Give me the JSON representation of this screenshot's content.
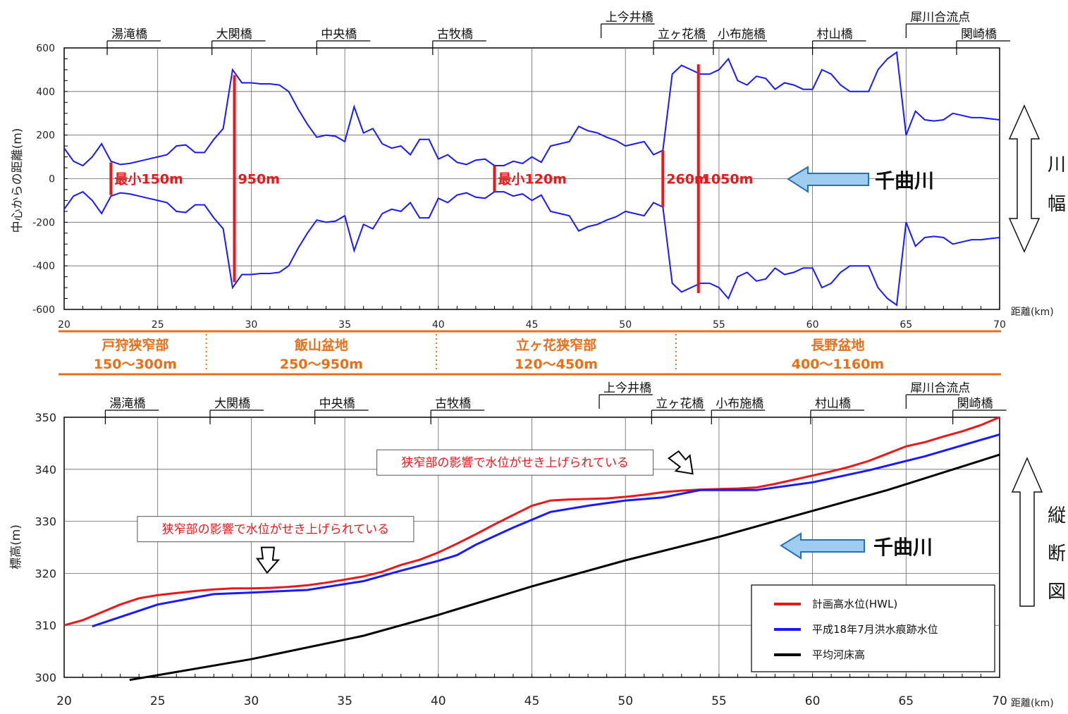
{
  "chart_data": [
    {
      "type": "line",
      "ylabel": "中心からの距離(m)",
      "xlabel": "距離(km)",
      "xlim": [
        20,
        70
      ],
      "ylim": [
        -600,
        600
      ],
      "xticks": [
        20,
        25,
        30,
        35,
        40,
        45,
        50,
        55,
        60,
        65,
        70
      ],
      "xtick_labels": [
        "20",
        "25",
        "30",
        "35",
        "40",
        "45",
        "50",
        "55",
        "60",
        "65",
        "70"
      ],
      "yticks": [
        600,
        400,
        200,
        0,
        -200,
        -400,
        -600
      ],
      "ytick_labels": [
        "600",
        "400",
        "200",
        "0",
        "-200",
        "-400",
        "-600"
      ],
      "grid": true,
      "series_color": "#1a1aff",
      "x": [
        20,
        20.5,
        21,
        21.5,
        22,
        22.5,
        23,
        23.5,
        24,
        24.5,
        25,
        25.5,
        26,
        26.5,
        27,
        27.5,
        28,
        28.5,
        29,
        29.5,
        30,
        30.5,
        31,
        31.5,
        32,
        32.5,
        33,
        33.5,
        34,
        34.5,
        35,
        35.5,
        36,
        36.5,
        37,
        37.5,
        38,
        38.5,
        39,
        39.5,
        40,
        40.5,
        41,
        41.5,
        42,
        42.5,
        43,
        43.5,
        44,
        44.5,
        45,
        45.5,
        46,
        46.5,
        47,
        47.5,
        48,
        48.5,
        49,
        49.5,
        50,
        50.5,
        51,
        51.5,
        52,
        52.5,
        53,
        53.5,
        54,
        54.5,
        55,
        55.5,
        56,
        56.5,
        57,
        57.5,
        58,
        58.5,
        59,
        59.5,
        60,
        60.5,
        61,
        61.5,
        62,
        62.5,
        63,
        63.5,
        64,
        64.5,
        65,
        65.5,
        66,
        66.5,
        67,
        67.5,
        68,
        68.5,
        69,
        69.5,
        70
      ],
      "upper": [
        140,
        80,
        60,
        100,
        160,
        80,
        65,
        70,
        80,
        90,
        100,
        110,
        150,
        155,
        120,
        120,
        180,
        230,
        500,
        440,
        440,
        435,
        435,
        430,
        400,
        320,
        250,
        190,
        200,
        195,
        170,
        330,
        210,
        230,
        160,
        140,
        150,
        110,
        180,
        180,
        90,
        110,
        75,
        65,
        85,
        90,
        60,
        60,
        80,
        70,
        100,
        75,
        150,
        160,
        170,
        240,
        220,
        210,
        190,
        175,
        150,
        160,
        170,
        110,
        130,
        480,
        520,
        500,
        480,
        480,
        500,
        550,
        450,
        430,
        470,
        460,
        410,
        440,
        430,
        410,
        410,
        500,
        480,
        430,
        400,
        400,
        400,
        500,
        550,
        580,
        200,
        310,
        270,
        265,
        270,
        300,
        290,
        280,
        280,
        275,
        270
      ],
      "lower": [
        -140,
        -80,
        -60,
        -100,
        -160,
        -80,
        -65,
        -70,
        -80,
        -90,
        -100,
        -110,
        -150,
        -155,
        -120,
        -120,
        -180,
        -230,
        -500,
        -440,
        -440,
        -435,
        -435,
        -430,
        -400,
        -320,
        -250,
        -190,
        -200,
        -195,
        -170,
        -330,
        -210,
        -230,
        -160,
        -140,
        -150,
        -110,
        -180,
        -180,
        -90,
        -110,
        -75,
        -65,
        -85,
        -90,
        -60,
        -60,
        -80,
        -70,
        -100,
        -75,
        -150,
        -160,
        -170,
        -240,
        -220,
        -210,
        -190,
        -175,
        -150,
        -160,
        -170,
        -110,
        -130,
        -480,
        -520,
        -500,
        -480,
        -480,
        -500,
        -550,
        -450,
        -430,
        -470,
        -460,
        -410,
        -440,
        -430,
        -410,
        -410,
        -500,
        -480,
        -430,
        -400,
        -400,
        -400,
        -500,
        -550,
        -580,
        -200,
        -310,
        -270,
        -265,
        -270,
        -300,
        -290,
        -280,
        -280,
        -275,
        -270
      ],
      "width_markers": [
        {
          "x": 22.5,
          "half_width": 75,
          "label": "最小150m"
        },
        {
          "x": 29.1,
          "half_width": 475,
          "label": "950m"
        },
        {
          "x": 43.0,
          "half_width": 60,
          "label": "最小120m"
        },
        {
          "x": 52.0,
          "half_width": 130,
          "label": "260m"
        },
        {
          "x": 53.9,
          "half_width": 525,
          "label": "1050m"
        }
      ],
      "bridges": [
        {
          "x": 22.3,
          "label": "湯滝橋"
        },
        {
          "x": 27.9,
          "label": "大関橋"
        },
        {
          "x": 33.5,
          "label": "中央橋"
        },
        {
          "x": 39.7,
          "label": "古牧橋"
        },
        {
          "x": 48.7,
          "label": "上今井橋"
        },
        {
          "x": 51.5,
          "label": "立ヶ花橋"
        },
        {
          "x": 54.7,
          "label": "小布施橋"
        },
        {
          "x": 60.0,
          "label": "村山橋"
        },
        {
          "x": 65.0,
          "label": "犀川合流点"
        },
        {
          "x": 67.7,
          "label": "関崎橋"
        }
      ],
      "river_label": "千曲川",
      "side_label": [
        "川",
        "幅"
      ]
    },
    {
      "type": "line",
      "ylabel": "標高(m)",
      "xlabel": "距離(km)",
      "xlim": [
        20,
        70
      ],
      "ylim": [
        300,
        350
      ],
      "xticks": [
        20,
        25,
        30,
        35,
        40,
        45,
        50,
        55,
        60,
        65,
        70
      ],
      "xtick_labels": [
        "20",
        "25",
        "30",
        "35",
        "40",
        "45",
        "50",
        "55",
        "60",
        "65",
        "70"
      ],
      "yticks": [
        350,
        340,
        330,
        320,
        310,
        300
      ],
      "ytick_labels": [
        "350",
        "340",
        "330",
        "320",
        "310",
        "300"
      ],
      "grid": true,
      "series": [
        {
          "name": "計画高水位(HWL)",
          "color": "#e8191b",
          "x": [
            20,
            21,
            22,
            23,
            24,
            25,
            26,
            27,
            28,
            29,
            30,
            31,
            32,
            33,
            34,
            35,
            36,
            37,
            38,
            39,
            40,
            41,
            42,
            43,
            44,
            45,
            46,
            47,
            48,
            49,
            50,
            51,
            52,
            53,
            54,
            55,
            56,
            57,
            58,
            59,
            60,
            61,
            62,
            63,
            64,
            65,
            66,
            67,
            68,
            69,
            70
          ],
          "y": [
            310,
            311,
            312.5,
            314,
            315.2,
            315.8,
            316.2,
            316.6,
            316.9,
            317.1,
            317.1,
            317.2,
            317.4,
            317.7,
            318.2,
            318.8,
            319.4,
            320.3,
            321.6,
            322.6,
            324,
            325.7,
            327.5,
            329.4,
            331.2,
            333,
            334,
            334.2,
            334.3,
            334.4,
            334.7,
            335.1,
            335.6,
            335.9,
            336.1,
            336.2,
            336.3,
            336.5,
            337.2,
            338,
            338.8,
            339.6,
            340.5,
            341.6,
            343,
            344.4,
            345.2,
            346.3,
            347.3,
            348.5,
            350
          ]
        },
        {
          "name": "平成18年7月洪水痕跡水位",
          "color": "#1a1aff",
          "x": [
            21.5,
            25,
            28,
            30,
            33,
            36,
            38,
            40,
            41,
            42,
            44,
            46,
            48,
            50,
            52,
            54,
            57,
            60,
            63,
            66,
            70
          ],
          "y": [
            309.8,
            314,
            316,
            316.3,
            316.8,
            318.5,
            320.5,
            322.4,
            323.5,
            325.5,
            328.8,
            331.8,
            333,
            334,
            334.6,
            336,
            336,
            337.5,
            339.8,
            342.5,
            346.7
          ]
        },
        {
          "name": "平均河床高",
          "color": "#000000",
          "x": [
            23.5,
            30,
            36,
            40,
            45,
            50,
            55,
            60,
            64,
            70
          ],
          "y": [
            299.5,
            303.5,
            308,
            312,
            317.5,
            322.5,
            327,
            332,
            336,
            342.8
          ]
        }
      ],
      "annotations": [
        {
          "text": "狭窄部の影響で水位がせき上げられている",
          "x": 31.3,
          "y": 328.5
        },
        {
          "text": "狭窄部の影響で水位がせき上げられている",
          "x": 44.1,
          "y": 341.3
        }
      ],
      "bridges": [
        {
          "x": 22.2,
          "label": "湯滝橋"
        },
        {
          "x": 27.8,
          "label": "大関橋"
        },
        {
          "x": 33.4,
          "label": "中央橋"
        },
        {
          "x": 39.6,
          "label": "古牧橋"
        },
        {
          "x": 48.6,
          "label": "上今井橋"
        },
        {
          "x": 51.4,
          "label": "立ヶ花橋"
        },
        {
          "x": 54.6,
          "label": "小布施橋"
        },
        {
          "x": 59.9,
          "label": "村山橋"
        },
        {
          "x": 65.0,
          "label": "犀川合流点"
        },
        {
          "x": 67.5,
          "label": "関崎橋"
        }
      ],
      "river_label": "千曲川",
      "side_label": [
        "縦",
        "断",
        "図"
      ]
    }
  ],
  "sections": [
    {
      "x_start": 20,
      "x_end": 27.6,
      "name": "戸狩狭窄部",
      "range": "150〜300m"
    },
    {
      "x_start": 27.6,
      "x_end": 39.9,
      "name": "飯山盆地",
      "range": "250〜950m"
    },
    {
      "x_start": 39.9,
      "x_end": 52.7,
      "name": "立ヶ花狭窄部",
      "range": "120〜450m"
    },
    {
      "x_start": 52.7,
      "x_end": 70,
      "name": "長野盆地",
      "range": "400〜1160m"
    }
  ],
  "colors": {
    "section_orange": "#e8701a",
    "marker_red": "#e8191b",
    "arrow_fill": "#9fcdef",
    "arrow_stroke": "#2a6fb0"
  }
}
